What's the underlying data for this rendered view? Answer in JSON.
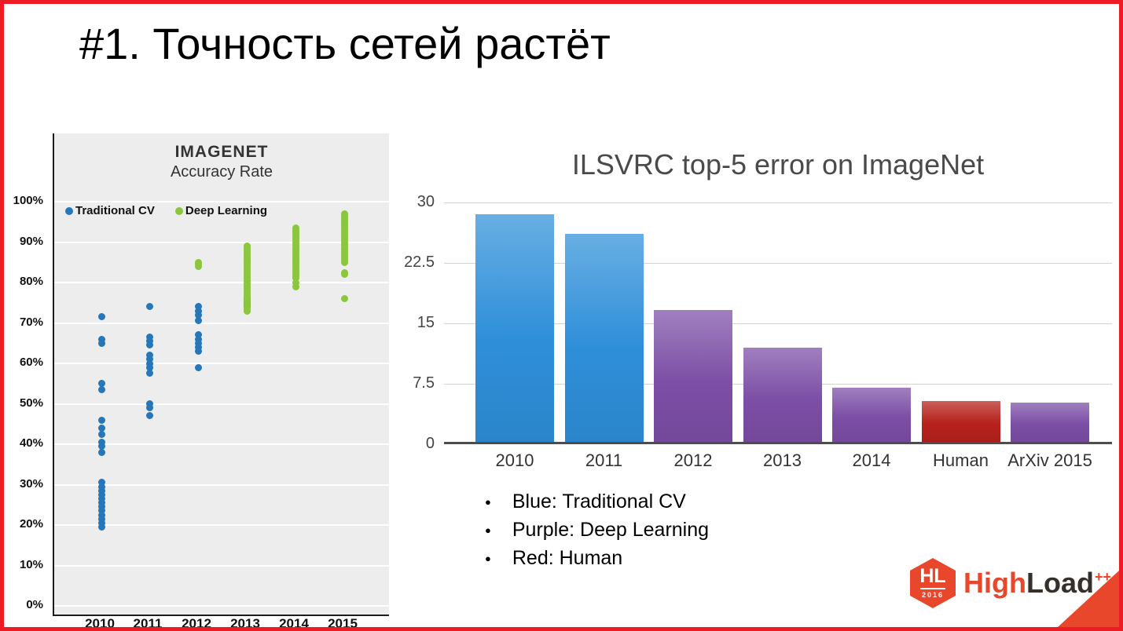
{
  "slide": {
    "title": "#1. Точность сетей растёт",
    "border_color": "#ed1c24",
    "background": "#ffffff"
  },
  "chart_data": [
    {
      "type": "scatter",
      "title": "IMAGENET",
      "subtitle": "Accuracy Rate",
      "x_categories": [
        "2010",
        "2011",
        "2012",
        "2013",
        "2014",
        "2015"
      ],
      "y_ticks": [
        "100%",
        "90%",
        "80%",
        "70%",
        "60%",
        "50%",
        "40%",
        "30%",
        "20%",
        "10%",
        "0%"
      ],
      "ylim": [
        0,
        100
      ],
      "grid": true,
      "legend_position": "top-left",
      "panel_background": "#ededed",
      "series": [
        {
          "name": "Traditional CV",
          "color": "#2577b9",
          "points": {
            "2010": [
              71.5,
              66,
              65,
              55,
              53.5,
              46,
              44,
              42.5,
              40.5,
              39.5,
              38,
              30.5,
              29.5,
              28.5,
              27.5,
              26.5,
              25.5,
              24.5,
              23.5,
              22.5,
              21.5,
              20.5,
              19.5
            ],
            "2011": [
              74,
              66.5,
              65.5,
              64.5,
              62,
              61,
              60,
              59,
              57.5,
              50,
              49,
              47
            ],
            "2012": [
              74,
              73,
              72,
              70.5,
              67,
              66,
              65,
              64,
              63,
              59
            ],
            "2013": [
              76,
              75.5,
              75,
              74.5,
              74
            ]
          }
        },
        {
          "name": "Deep Learning",
          "color": "#8cc63e",
          "points": {
            "2012": [
              85,
              84.5,
              84
            ],
            "2013": [
              89,
              88.5,
              88,
              87.5,
              87,
              86.5,
              86,
              85.5,
              85,
              84.5,
              84,
              83.5,
              83,
              82.5,
              82,
              81.5,
              81,
              80.5,
              80,
              79.5,
              79,
              78.5,
              78,
              77.5,
              77,
              76.5,
              76,
              75.5,
              75,
              74.5,
              74,
              73.5,
              73
            ],
            "2014": [
              93.5,
              93,
              92.5,
              92,
              91.5,
              91,
              90.5,
              90,
              89.5,
              89,
              88.5,
              88,
              87.5,
              87,
              86.5,
              86,
              85.5,
              85,
              84.5,
              84,
              83.5,
              83,
              82.5,
              82,
              81.5,
              81,
              80,
              79
            ],
            "2015": [
              97,
              96.5,
              96,
              95.5,
              95,
              94.5,
              94,
              93.5,
              93,
              92.5,
              92,
              91.5,
              91,
              90.5,
              90,
              89.5,
              89,
              88.5,
              88,
              87.5,
              87,
              86.5,
              86,
              85.5,
              85,
              82.5,
              82,
              76
            ]
          }
        }
      ]
    },
    {
      "type": "bar",
      "title": "ILSVRC top-5 error on ImageNet",
      "categories": [
        "2010",
        "2011",
        "2012",
        "2013",
        "2014",
        "Human",
        "ArXiv 2015"
      ],
      "values": [
        28.2,
        25.8,
        16.4,
        11.7,
        6.7,
        5.1,
        4.9
      ],
      "bar_colors": [
        "#2e8fd9",
        "#2e8fd9",
        "#7c4ea6",
        "#7c4ea6",
        "#7c4ea6",
        "#b7211b",
        "#7c4ea6"
      ],
      "y_ticks": [
        "30",
        "22.5",
        "15",
        "7.5",
        "0"
      ],
      "ylim": [
        0,
        30
      ],
      "grid": true,
      "legend_position": "none"
    }
  ],
  "bullet_glyph": "●",
  "bullets": [
    "Blue: Traditional CV",
    "Purple: Deep Learning",
    "Red: Human"
  ],
  "logo": {
    "badge_text": "HL",
    "badge_year": "2016",
    "brand_high": "High",
    "brand_load": "Load",
    "brand_suffix": "++",
    "accent_color": "#e8472b",
    "text_color": "#35302b"
  }
}
